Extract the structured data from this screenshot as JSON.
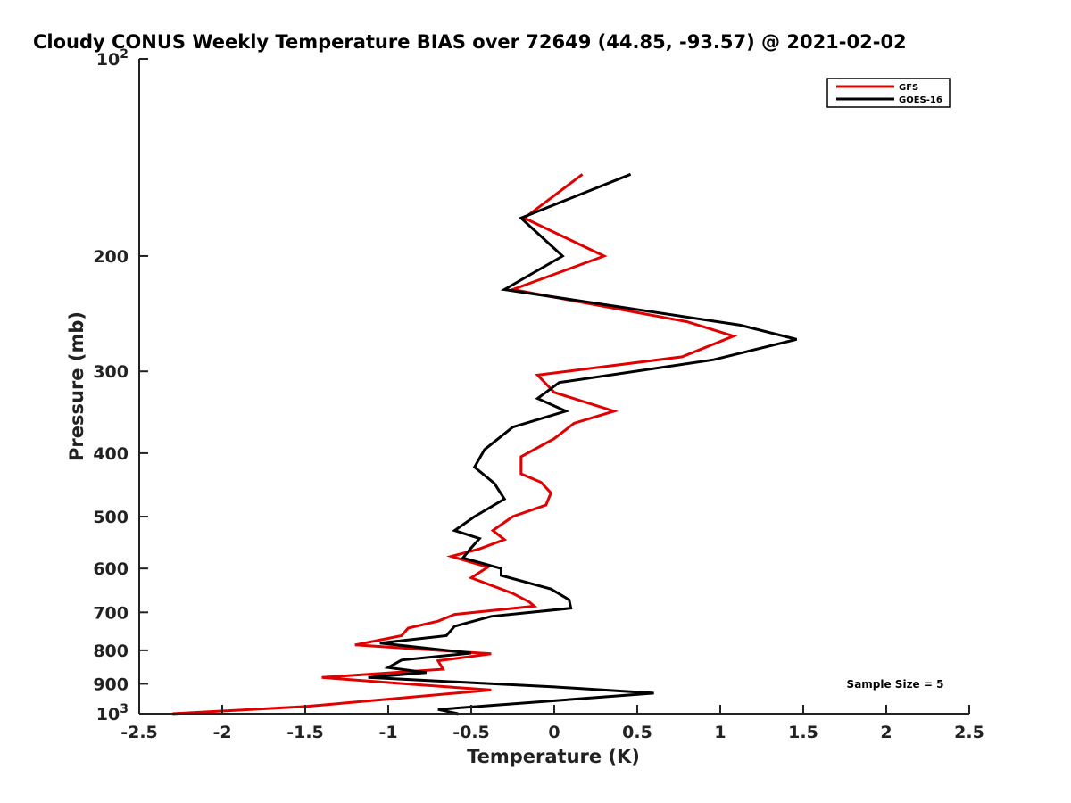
{
  "chart_data": {
    "type": "line",
    "title": "Cloudy CONUS Weekly Temperature BIAS over 72649 (44.85, -93.57) @ 2021-02-02",
    "xlabel": "Temperature (K)",
    "ylabel": "Pressure (mb)",
    "xlim": [
      -2.5,
      2.5
    ],
    "ylim": [
      100,
      1000
    ],
    "y_scale": "log",
    "y_reversed": true,
    "x_ticks": [
      "-2.5",
      "-2",
      "-1.5",
      "-1",
      "-0.5",
      "0",
      "0.5",
      "1",
      "1.5",
      "2",
      "2.5"
    ],
    "y_ticks": [
      {
        "value": 100,
        "base": "10",
        "exp": "2"
      },
      {
        "value": 200,
        "label": "200"
      },
      {
        "value": 300,
        "label": "300"
      },
      {
        "value": 400,
        "label": "400"
      },
      {
        "value": 500,
        "label": "500"
      },
      {
        "value": 600,
        "label": "600"
      },
      {
        "value": 700,
        "label": "700"
      },
      {
        "value": 800,
        "label": "800"
      },
      {
        "value": 900,
        "label": "900"
      },
      {
        "value": 1000,
        "base": "10",
        "exp": "3"
      }
    ],
    "grid": false,
    "legend_position": "top-right",
    "annotation": "Sample Size = 5",
    "series": [
      {
        "name": "GFS",
        "color": "#e00000",
        "points": [
          [
            0.17,
            150
          ],
          [
            -0.18,
            175
          ],
          [
            0.3,
            200
          ],
          [
            -0.25,
            225
          ],
          [
            0.8,
            252
          ],
          [
            1.08,
            265
          ],
          [
            0.77,
            285
          ],
          [
            -0.1,
            304
          ],
          [
            0.0,
            323
          ],
          [
            0.36,
            345
          ],
          [
            0.12,
            360
          ],
          [
            0.0,
            380
          ],
          [
            -0.2,
            405
          ],
          [
            -0.2,
            430
          ],
          [
            -0.08,
            443
          ],
          [
            -0.02,
            460
          ],
          [
            -0.05,
            480
          ],
          [
            -0.25,
            500
          ],
          [
            -0.37,
            525
          ],
          [
            -0.3,
            542
          ],
          [
            -0.45,
            560
          ],
          [
            -0.62,
            575
          ],
          [
            -0.4,
            597
          ],
          [
            -0.5,
            620
          ],
          [
            -0.25,
            655
          ],
          [
            -0.15,
            675
          ],
          [
            -0.12,
            685
          ],
          [
            -0.6,
            705
          ],
          [
            -0.7,
            722
          ],
          [
            -0.88,
            740
          ],
          [
            -0.92,
            760
          ],
          [
            -1.2,
            785
          ],
          [
            -0.38,
            810
          ],
          [
            -0.7,
            830
          ],
          [
            -0.67,
            855
          ],
          [
            -1.4,
            880
          ],
          [
            -0.9,
            900
          ],
          [
            -0.38,
            920
          ],
          [
            -1.0,
            950
          ],
          [
            -1.5,
            975
          ],
          [
            -2.3,
            1000
          ]
        ]
      },
      {
        "name": "GOES-16",
        "color": "#000000",
        "points": [
          [
            0.46,
            150
          ],
          [
            -0.2,
            175
          ],
          [
            0.05,
            200
          ],
          [
            -0.3,
            225
          ],
          [
            1.12,
            255
          ],
          [
            1.46,
            268
          ],
          [
            0.96,
            288
          ],
          [
            0.03,
            312
          ],
          [
            -0.1,
            330
          ],
          [
            0.07,
            345
          ],
          [
            -0.25,
            365
          ],
          [
            -0.42,
            395
          ],
          [
            -0.48,
            420
          ],
          [
            -0.36,
            445
          ],
          [
            -0.3,
            470
          ],
          [
            -0.48,
            500
          ],
          [
            -0.6,
            525
          ],
          [
            -0.45,
            540
          ],
          [
            -0.5,
            558
          ],
          [
            -0.55,
            578
          ],
          [
            -0.32,
            600
          ],
          [
            -0.32,
            615
          ],
          [
            -0.02,
            645
          ],
          [
            0.09,
            670
          ],
          [
            0.1,
            690
          ],
          [
            -0.38,
            710
          ],
          [
            -0.6,
            735
          ],
          [
            -0.65,
            760
          ],
          [
            -1.05,
            780
          ],
          [
            -0.5,
            808
          ],
          [
            -0.92,
            828
          ],
          [
            -1.0,
            850
          ],
          [
            -0.77,
            865
          ],
          [
            -1.12,
            880
          ],
          [
            0.0,
            910
          ],
          [
            0.6,
            930
          ],
          [
            -0.7,
            985
          ],
          [
            -0.58,
            1000
          ]
        ]
      }
    ]
  }
}
